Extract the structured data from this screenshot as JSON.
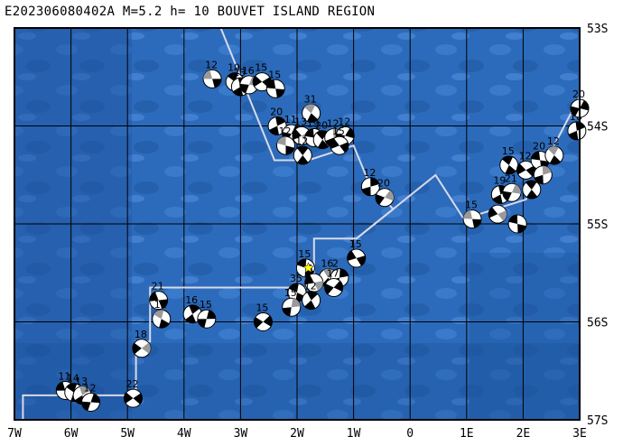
{
  "header": {
    "title": "E202306080402A  M=5.2  h= 10  BOUVET ISLAND REGION"
  },
  "map": {
    "lon_range": [
      -7,
      3
    ],
    "lat_range": [
      -57,
      -53
    ],
    "lon_labels": [
      "7W",
      "6W",
      "5W",
      "4W",
      "3W",
      "2W",
      "1W",
      "0",
      "1E",
      "2E",
      "3E"
    ],
    "lat_labels": [
      "53S",
      "54S",
      "55S",
      "56S",
      "57S"
    ],
    "colors": {
      "ocean_dark": "#1f5ca8",
      "ocean_mid": "#3f80cf",
      "ocean_light": "#6aa1e0",
      "grid": "#000000",
      "ridge": "#d9d9e8",
      "event_star": "#ffff00",
      "beachball_fill": "#000000",
      "beachball_gray": "#9a9a9a"
    },
    "mechanisms": [
      {
        "lon": -3.5,
        "lat": -53.52,
        "depth": "12"
      },
      {
        "lon": -3.1,
        "lat": -53.55,
        "depth": "19"
      },
      {
        "lon": -3.0,
        "lat": -53.6,
        "depth": "23"
      },
      {
        "lon": -2.85,
        "lat": -53.58,
        "depth": "16"
      },
      {
        "lon": -2.62,
        "lat": -53.55,
        "depth": "15"
      },
      {
        "lon": -2.38,
        "lat": -53.62,
        "depth": "15"
      },
      {
        "lon": -1.75,
        "lat": -53.87,
        "depth": "31"
      },
      {
        "lon": -2.35,
        "lat": -54.0,
        "depth": "20"
      },
      {
        "lon": -2.1,
        "lat": -54.08,
        "depth": "11"
      },
      {
        "lon": -1.92,
        "lat": -54.1,
        "depth": "13"
      },
      {
        "lon": -1.7,
        "lat": -54.12,
        "depth": "19"
      },
      {
        "lon": -1.55,
        "lat": -54.14,
        "depth": "20"
      },
      {
        "lon": -1.35,
        "lat": -54.12,
        "depth": "12"
      },
      {
        "lon": -1.15,
        "lat": -54.1,
        "depth": "12"
      },
      {
        "lon": -1.25,
        "lat": -54.2,
        "depth": "15"
      },
      {
        "lon": -2.2,
        "lat": -54.2,
        "depth": "12"
      },
      {
        "lon": -1.9,
        "lat": -54.3,
        "depth": "12"
      },
      {
        "lon": -0.7,
        "lat": -54.62,
        "depth": "12"
      },
      {
        "lon": -0.45,
        "lat": -54.73,
        "depth": "20"
      },
      {
        "lon": -0.95,
        "lat": -55.35,
        "depth": "15"
      },
      {
        "lon": -1.85,
        "lat": -55.45,
        "depth": "15"
      },
      {
        "lon": -1.45,
        "lat": -55.55,
        "depth": "16"
      },
      {
        "lon": -1.25,
        "lat": -55.55,
        "depth": "2"
      },
      {
        "lon": -1.35,
        "lat": -55.65,
        "depth": "17"
      },
      {
        "lon": -1.7,
        "lat": -55.6,
        "depth": "5"
      },
      {
        "lon": -2.0,
        "lat": -55.7,
        "depth": "35"
      },
      {
        "lon": -1.75,
        "lat": -55.78,
        "depth": "12"
      },
      {
        "lon": -2.1,
        "lat": -55.85,
        "depth": "15"
      },
      {
        "lon": -2.6,
        "lat": -56.0,
        "depth": "15"
      },
      {
        "lon": -4.45,
        "lat": -55.78,
        "depth": "21"
      },
      {
        "lon": -4.4,
        "lat": -55.97,
        "depth": "12"
      },
      {
        "lon": -3.85,
        "lat": -55.92,
        "depth": "16"
      },
      {
        "lon": -3.6,
        "lat": -55.97,
        "depth": "15"
      },
      {
        "lon": -4.75,
        "lat": -56.27,
        "depth": "18"
      },
      {
        "lon": -6.1,
        "lat": -56.7,
        "depth": "11"
      },
      {
        "lon": -5.95,
        "lat": -56.72,
        "depth": "14"
      },
      {
        "lon": -5.8,
        "lat": -56.75,
        "depth": "13"
      },
      {
        "lon": -5.65,
        "lat": -56.82,
        "depth": "12"
      },
      {
        "lon": -4.9,
        "lat": -56.78,
        "depth": "22"
      },
      {
        "lon": 1.1,
        "lat": -54.95,
        "depth": "15"
      },
      {
        "lon": 1.75,
        "lat": -54.4,
        "depth": "15"
      },
      {
        "lon": 1.6,
        "lat": -54.7,
        "depth": "19"
      },
      {
        "lon": 1.8,
        "lat": -54.68,
        "depth": "21"
      },
      {
        "lon": 2.05,
        "lat": -54.45,
        "depth": "12"
      },
      {
        "lon": 2.3,
        "lat": -54.35,
        "depth": "20"
      },
      {
        "lon": 2.55,
        "lat": -54.3,
        "depth": "12"
      },
      {
        "lon": 2.95,
        "lat": -54.05,
        "depth": "16"
      },
      {
        "lon": 3.0,
        "lat": -53.82,
        "depth": "20"
      },
      {
        "lon": 1.55,
        "lat": -54.9,
        "depth": ""
      },
      {
        "lon": 1.9,
        "lat": -55.0,
        "depth": ""
      },
      {
        "lon": 2.15,
        "lat": -54.65,
        "depth": ""
      },
      {
        "lon": 2.35,
        "lat": -54.5,
        "depth": ""
      }
    ],
    "event_star": {
      "lon": -1.8,
      "lat": -55.45
    },
    "ridge_path": [
      [
        -6.85,
        -57.0
      ],
      [
        -6.85,
        -56.75
      ],
      [
        -4.85,
        -56.75
      ],
      [
        -4.85,
        -56.2
      ],
      [
        -4.6,
        -56.2
      ],
      [
        -4.6,
        -55.65
      ],
      [
        -1.7,
        -55.65
      ],
      [
        -1.7,
        -55.15
      ],
      [
        -0.95,
        -55.15
      ],
      [
        0.45,
        -54.5
      ],
      [
        0.95,
        -54.95
      ],
      [
        2.05,
        -54.75
      ],
      [
        3.0,
        -53.7
      ]
    ],
    "ridge_path_north": [
      [
        -3.35,
        -53.0
      ],
      [
        -2.4,
        -54.35
      ],
      [
        -1.8,
        -54.35
      ],
      [
        -1.0,
        -54.2
      ],
      [
        -0.75,
        -54.55
      ],
      [
        -0.3,
        -54.85
      ],
      [
        -0.95,
        -55.15
      ]
    ]
  }
}
